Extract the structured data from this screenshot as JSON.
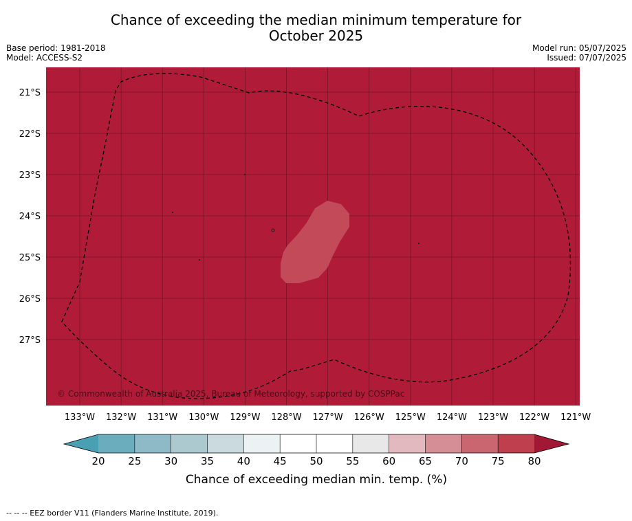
{
  "title": {
    "line1": "Chance of exceeding the median minimum temperature for",
    "line2": "October 2025"
  },
  "meta_left": {
    "base_period": "Base period: 1981-2018",
    "model": "Model: ACCESS-S2"
  },
  "meta_right": {
    "model_run": "Model run: 05/07/2025",
    "issued": "Issued: 07/07/2025"
  },
  "map": {
    "fill_color": "#b01c38",
    "grid_color": "#7a1226",
    "anomaly_color": "#c34a58",
    "longitude_labels": [
      "133°W",
      "132°W",
      "131°W",
      "130°W",
      "129°W",
      "128°W",
      "127°W",
      "126°W",
      "125°W",
      "124°W",
      "123°W",
      "122°W",
      "121°W"
    ],
    "latitude_labels": [
      "21°S",
      "22°S",
      "23°S",
      "24°S",
      "25°S",
      "26°S",
      "27°S"
    ],
    "copyright": "© Commonwealth of Australia 2025, Bureau of Meteorology, supported by COSPPac"
  },
  "colorbar": {
    "tick_labels": [
      "20",
      "25",
      "30",
      "35",
      "40",
      "45",
      "50",
      "55",
      "60",
      "65",
      "70",
      "75",
      "80"
    ],
    "colors": [
      "#6badbc",
      "#8dbac6",
      "#abc9cf",
      "#cbdadf",
      "#ecf1f3",
      "#ffffff",
      "#ffffff",
      "#e8e8e8",
      "#e2b9bf",
      "#d68e96",
      "#ca6670",
      "#bf3f4f"
    ],
    "under_color": "#4aa0b3",
    "over_color": "#a11834",
    "label": "Chance of exceeding median min. temp. (%)"
  },
  "footnote": "--  --  -- EEZ border V11 (Flanders Marine Institute, 2019)."
}
